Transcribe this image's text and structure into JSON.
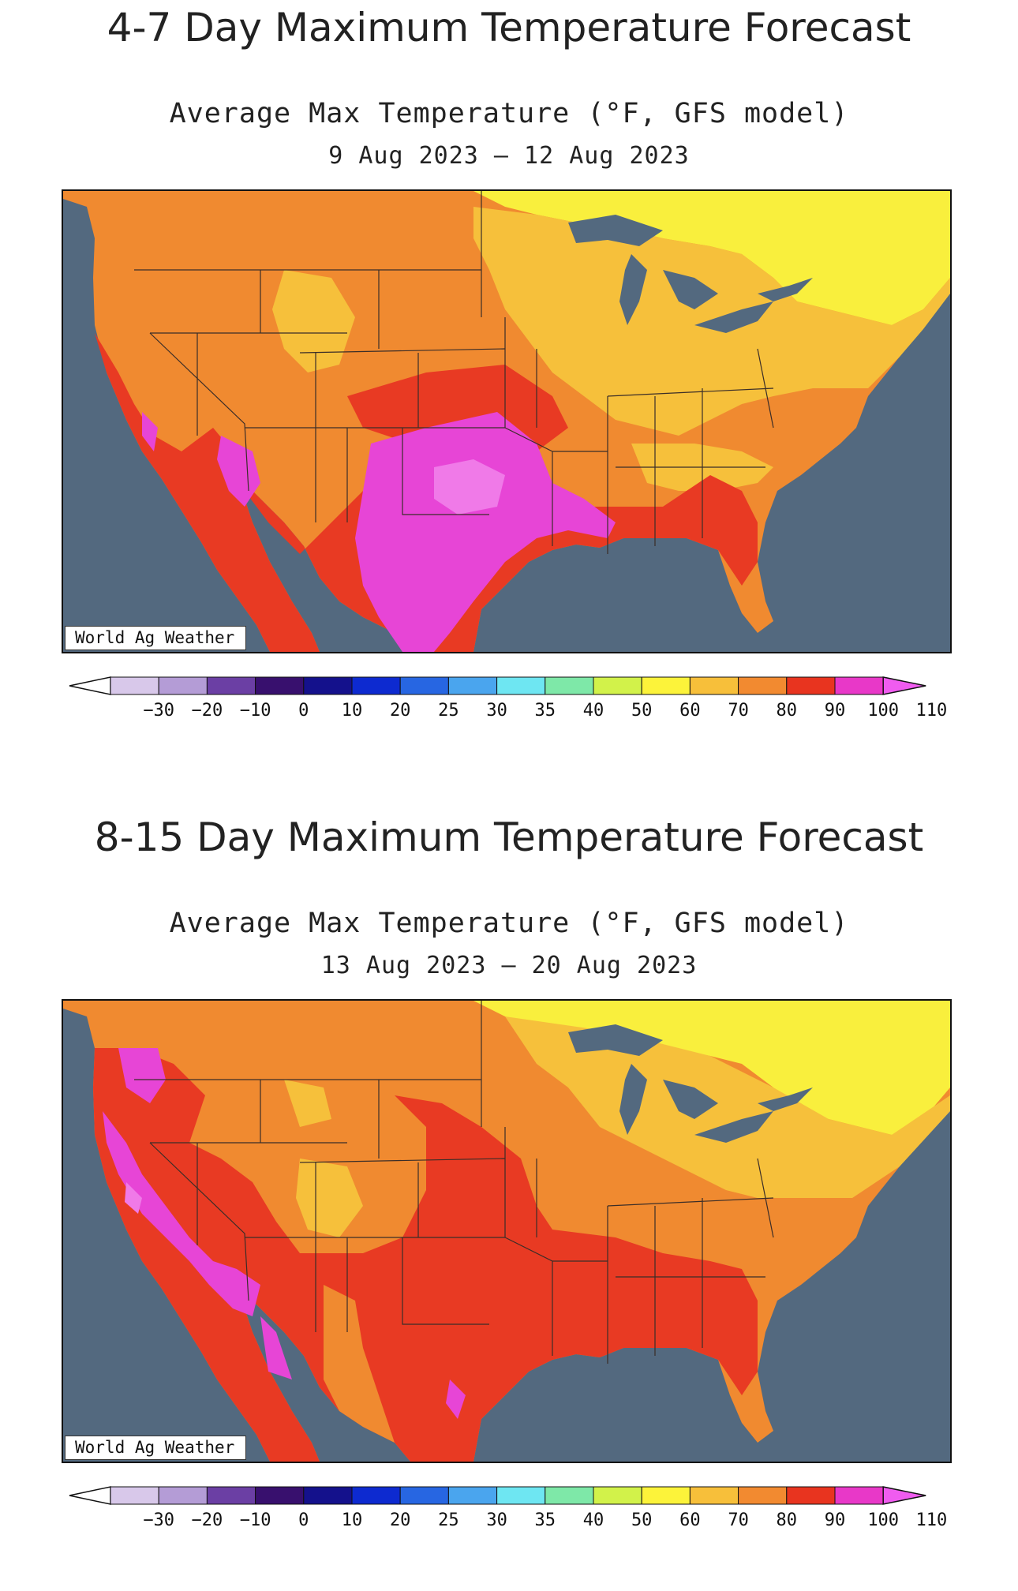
{
  "panels": [
    {
      "heading": "4-7 Day Maximum Temperature Forecast",
      "subtitle": "Average Max Temperature (°F, GFS model)",
      "date_range": "9 Aug 2023 – 12 Aug 2023",
      "credit": "World Ag Weather",
      "legend_ticks": [
        "−30",
        "−20",
        "−10",
        "0",
        "10",
        "20",
        "25",
        "30",
        "35",
        "40",
        "50",
        "60",
        "70",
        "80",
        "90",
        "100",
        "110"
      ]
    },
    {
      "heading": "8-15 Day Maximum Temperature Forecast",
      "subtitle": "Average Max Temperature (°F, GFS model)",
      "date_range": "13 Aug 2023 – 20 Aug 2023",
      "credit": "World Ag Weather",
      "legend_ticks": [
        "−30",
        "−20",
        "−10",
        "0",
        "10",
        "20",
        "25",
        "30",
        "35",
        "40",
        "50",
        "60",
        "70",
        "80",
        "90",
        "100",
        "110"
      ]
    }
  ],
  "legend_colors": [
    "#d8c8ea",
    "#b49cd6",
    "#6b3fa4",
    "#38106e",
    "#14118c",
    "#0d2ad0",
    "#2766e2",
    "#4aa5ee",
    "#6ee6f2",
    "#7ee8a8",
    "#d2f24a",
    "#fcf33a",
    "#f7bf3a",
    "#f28a30",
    "#e8341f",
    "#e838c8",
    "#f05cf0"
  ],
  "map_colors": {
    "water": "#53697f",
    "yellow": "#f9ef3d",
    "light_orange": "#f6c03b",
    "orange": "#f08a30",
    "red": "#e83a23",
    "magenta": "#e745d6",
    "pink": "#f07ae8",
    "border": "#3a2d28"
  }
}
